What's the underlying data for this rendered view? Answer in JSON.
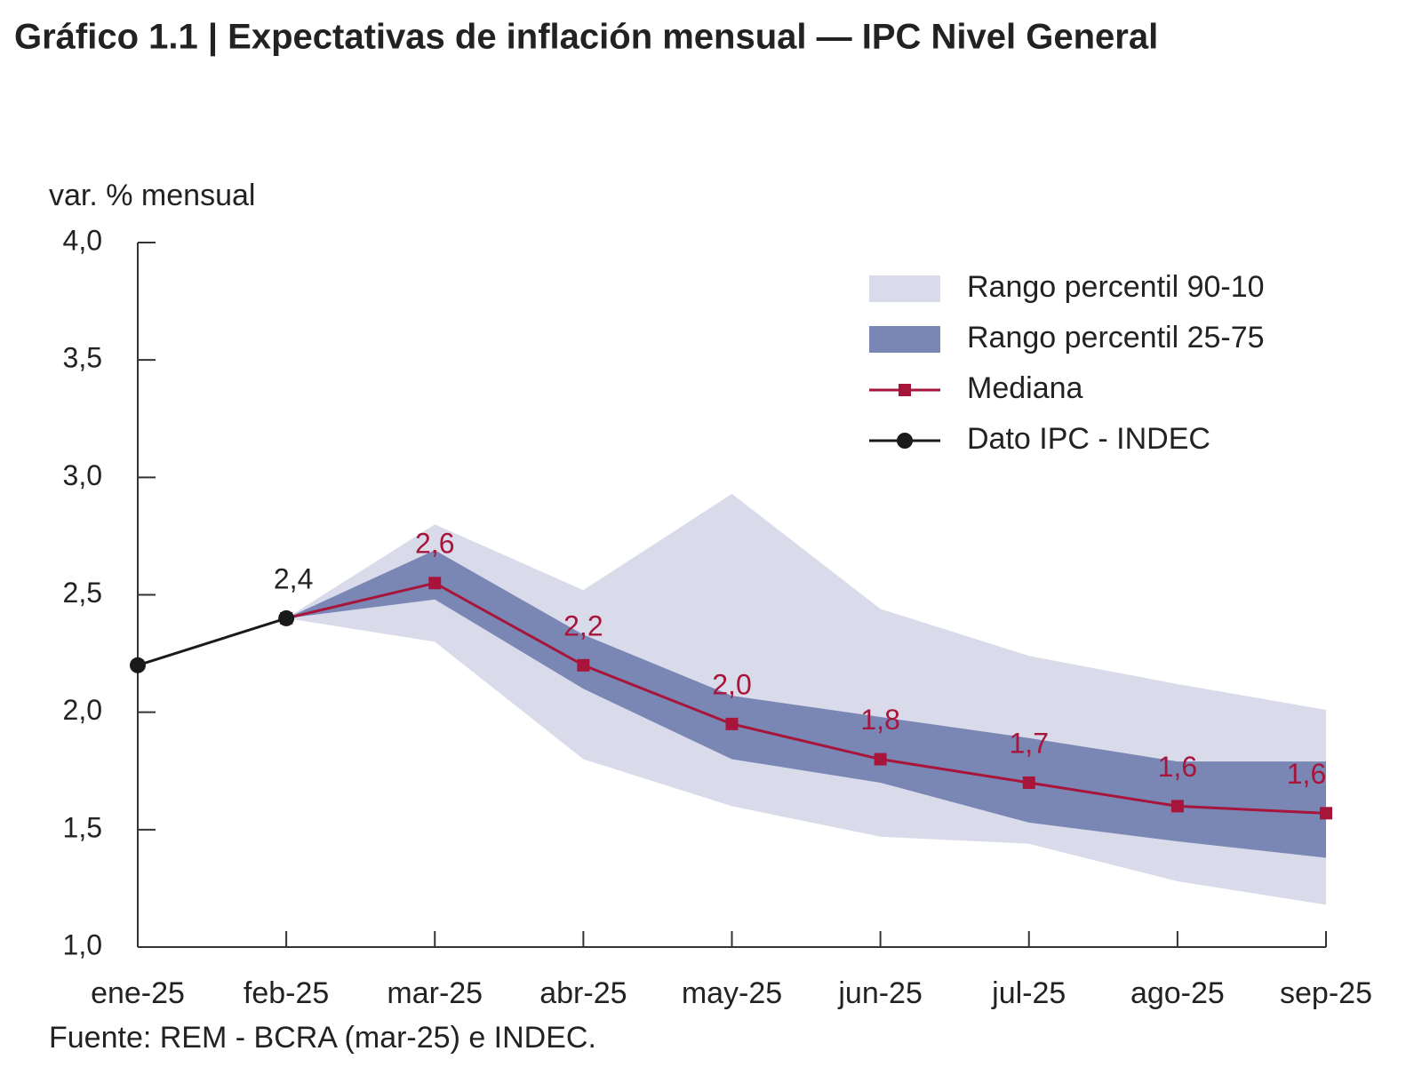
{
  "chart_data": {
    "type": "line",
    "title": "Gráfico 1.1 | Expectativas de inflación mensual — IPC Nivel General",
    "y_axis_label": "var. % mensual",
    "source": "Fuente: REM - BCRA (mar-25) e INDEC.",
    "categories": [
      "ene-25",
      "feb-25",
      "mar-25",
      "abr-25",
      "may-25",
      "jun-25",
      "jul-25",
      "ago-25",
      "sep-25"
    ],
    "ylim": [
      1,
      4
    ],
    "yticks": [
      {
        "value": 1,
        "label": "1,0"
      },
      {
        "value": 1.5,
        "label": "1,5"
      },
      {
        "value": 2,
        "label": "2,0"
      },
      {
        "value": 2.5,
        "label": "2,5"
      },
      {
        "value": 3,
        "label": "3,0"
      },
      {
        "value": 3.5,
        "label": "3,5"
      },
      {
        "value": 4,
        "label": "4,0"
      }
    ],
    "grid": false,
    "legend": "top-right",
    "series": [
      {
        "name": "Rango percentil 90-10",
        "type": "band",
        "color": "#d9dbea",
        "upper": [
          null,
          2.4,
          2.8,
          2.52,
          2.93,
          2.44,
          2.24,
          2.12,
          2.01
        ],
        "lower": [
          null,
          2.4,
          2.3,
          1.8,
          1.6,
          1.47,
          1.44,
          1.28,
          1.18
        ]
      },
      {
        "name": "Rango percentil 25-75",
        "type": "band",
        "color": "#7a87b5",
        "upper": [
          null,
          2.4,
          2.69,
          2.33,
          2.07,
          1.98,
          1.89,
          1.79,
          1.79
        ],
        "lower": [
          null,
          2.4,
          2.48,
          2.1,
          1.8,
          1.7,
          1.53,
          1.45,
          1.38
        ]
      },
      {
        "name": "Mediana",
        "type": "line",
        "marker": "square",
        "color": "#a8153b",
        "values": [
          null,
          2.4,
          2.55,
          2.2,
          1.95,
          1.8,
          1.7,
          1.6,
          1.57
        ],
        "value_labels": [
          null,
          null,
          "2,6",
          "2,2",
          "2,0",
          "1,8",
          "1,7",
          "1,6",
          "1,6"
        ]
      },
      {
        "name": "Dato IPC - INDEC",
        "type": "line",
        "marker": "circle",
        "color": "#1a1a1a",
        "values": [
          2.2,
          2.4,
          null,
          null,
          null,
          null,
          null,
          null,
          null
        ],
        "value_labels": [
          null,
          "2,4",
          null,
          null,
          null,
          null,
          null,
          null,
          null
        ]
      }
    ]
  }
}
